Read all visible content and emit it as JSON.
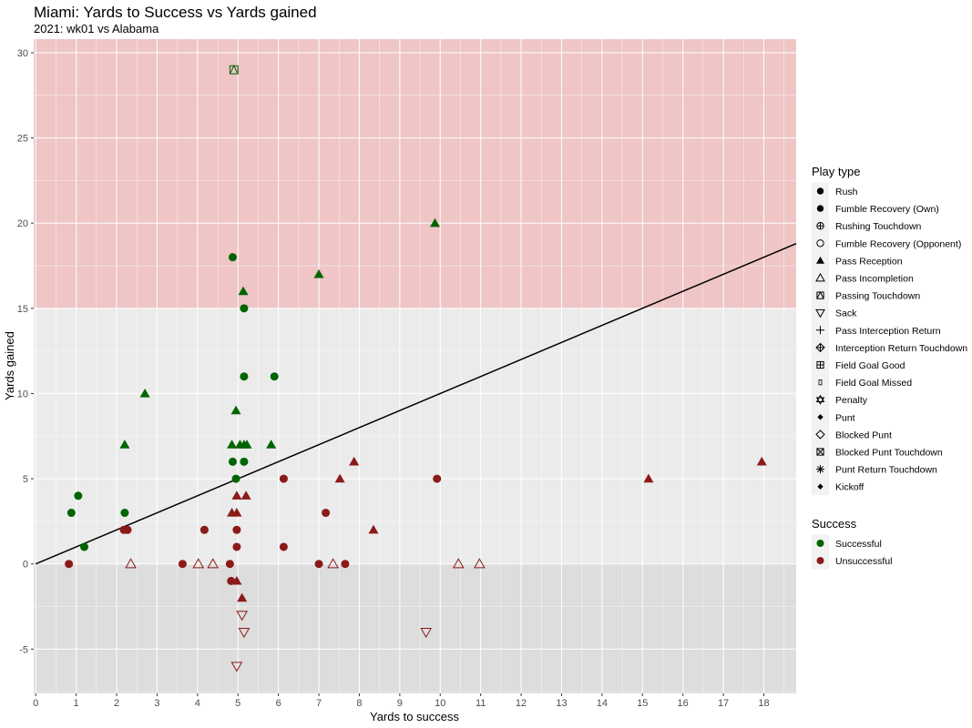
{
  "chart_data": {
    "type": "scatter",
    "title": "Miami: Yards to Success vs Yards gained",
    "subtitle": "2021: wk01 vs Alabama",
    "xlabel": "Yards to success",
    "ylabel": "Yards gained",
    "xlim": [
      -0.05,
      18.8
    ],
    "ylim": [
      -7.6,
      30.8
    ],
    "x_ticks": [
      0,
      1,
      2,
      3,
      4,
      5,
      6,
      7,
      8,
      9,
      10,
      11,
      12,
      13,
      14,
      15,
      16,
      17,
      18
    ],
    "y_ticks": [
      -5,
      0,
      5,
      10,
      15,
      20,
      25,
      30
    ],
    "bands": [
      {
        "from": 15,
        "to": 30.8,
        "color": "#efc5c6"
      },
      {
        "from": 0,
        "to": 15,
        "color": "#ebebeb"
      },
      {
        "from": -7.6,
        "to": 0,
        "color": "#dddddd"
      }
    ],
    "reference_line": {
      "slope": 1,
      "intercept": 0,
      "color": "#000000"
    },
    "colors": {
      "Successful": "#006400",
      "Unsuccessful": "#8b1a1a"
    },
    "legend_play_type": {
      "title": "Play type",
      "entries": [
        {
          "label": "Rush",
          "shape": "circle-filled"
        },
        {
          "label": "Fumble Recovery (Own)",
          "shape": "circle-filled"
        },
        {
          "label": "Rushing Touchdown",
          "shape": "circle-plus"
        },
        {
          "label": "Fumble Recovery (Opponent)",
          "shape": "circle-open"
        },
        {
          "label": "Pass Reception",
          "shape": "triangle-filled"
        },
        {
          "label": "Pass Incompletion",
          "shape": "triangle-open"
        },
        {
          "label": "Passing Touchdown",
          "shape": "square-triangle"
        },
        {
          "label": "Sack",
          "shape": "triangle-down-open"
        },
        {
          "label": "Pass Interception Return",
          "shape": "plus"
        },
        {
          "label": "Interception Return Touchdown",
          "shape": "diamond-plus"
        },
        {
          "label": "Field Goal Good",
          "shape": "square-plus"
        },
        {
          "label": "Field Goal Missed",
          "shape": "small-rect"
        },
        {
          "label": "Penalty",
          "shape": "star-of-david"
        },
        {
          "label": "Punt",
          "shape": "diamond-filled-small"
        },
        {
          "label": "Blocked Punt",
          "shape": "diamond-open"
        },
        {
          "label": "Blocked Punt Touchdown",
          "shape": "square-x"
        },
        {
          "label": "Punt Return Touchdown",
          "shape": "asterisk"
        },
        {
          "label": "Kickoff",
          "shape": "diamond-filled-small"
        }
      ]
    },
    "legend_success": {
      "title": "Success",
      "entries": [
        {
          "label": "Successful",
          "color": "#006400"
        },
        {
          "label": "Unsuccessful",
          "color": "#8b1a1a"
        }
      ]
    },
    "points": [
      {
        "x": 0.88,
        "y": 3,
        "play": "Rush",
        "success": "Successful"
      },
      {
        "x": 1.05,
        "y": 4,
        "play": "Rush",
        "success": "Successful"
      },
      {
        "x": 1.2,
        "y": 1,
        "play": "Rush",
        "success": "Successful"
      },
      {
        "x": 2.2,
        "y": 3,
        "play": "Rush",
        "success": "Successful"
      },
      {
        "x": 4.87,
        "y": 18,
        "play": "Rush",
        "success": "Successful"
      },
      {
        "x": 4.87,
        "y": 6,
        "play": "Rush",
        "success": "Successful"
      },
      {
        "x": 4.95,
        "y": 5,
        "play": "Rush",
        "success": "Successful"
      },
      {
        "x": 5.15,
        "y": 15,
        "play": "Rush",
        "success": "Successful"
      },
      {
        "x": 5.15,
        "y": 11,
        "play": "Rush",
        "success": "Successful"
      },
      {
        "x": 5.15,
        "y": 6,
        "play": "Rush",
        "success": "Successful"
      },
      {
        "x": 5.9,
        "y": 11,
        "play": "Rush",
        "success": "Successful"
      },
      {
        "x": 2.2,
        "y": 7,
        "play": "Pass Reception",
        "success": "Successful"
      },
      {
        "x": 2.7,
        "y": 10,
        "play": "Pass Reception",
        "success": "Successful"
      },
      {
        "x": 4.85,
        "y": 7,
        "play": "Pass Reception",
        "success": "Successful"
      },
      {
        "x": 4.95,
        "y": 9,
        "play": "Pass Reception",
        "success": "Successful"
      },
      {
        "x": 5.05,
        "y": 7,
        "play": "Pass Reception",
        "success": "Successful"
      },
      {
        "x": 5.13,
        "y": 16,
        "play": "Pass Reception",
        "success": "Successful"
      },
      {
        "x": 5.15,
        "y": 7,
        "play": "Pass Reception",
        "success": "Successful"
      },
      {
        "x": 5.22,
        "y": 7,
        "play": "Pass Reception",
        "success": "Successful"
      },
      {
        "x": 5.82,
        "y": 7,
        "play": "Pass Reception",
        "success": "Successful"
      },
      {
        "x": 7.0,
        "y": 17,
        "play": "Pass Reception",
        "success": "Successful"
      },
      {
        "x": 9.87,
        "y": 20,
        "play": "Pass Reception",
        "success": "Successful"
      },
      {
        "x": 4.9,
        "y": 29,
        "play": "Passing Touchdown",
        "success": "Successful"
      },
      {
        "x": 0.82,
        "y": 0,
        "play": "Rush",
        "success": "Unsuccessful"
      },
      {
        "x": 2.18,
        "y": 2,
        "play": "Rush",
        "success": "Unsuccessful"
      },
      {
        "x": 2.27,
        "y": 2,
        "play": "Rush",
        "success": "Unsuccessful"
      },
      {
        "x": 3.63,
        "y": 0,
        "play": "Rush",
        "success": "Unsuccessful"
      },
      {
        "x": 4.17,
        "y": 2,
        "play": "Rush",
        "success": "Unsuccessful"
      },
      {
        "x": 4.8,
        "y": 0,
        "play": "Rush",
        "success": "Unsuccessful"
      },
      {
        "x": 4.83,
        "y": -1,
        "play": "Rush",
        "success": "Unsuccessful"
      },
      {
        "x": 4.97,
        "y": 2,
        "play": "Rush",
        "success": "Unsuccessful"
      },
      {
        "x": 4.97,
        "y": 1,
        "play": "Rush",
        "success": "Unsuccessful"
      },
      {
        "x": 6.13,
        "y": 5,
        "play": "Rush",
        "success": "Unsuccessful"
      },
      {
        "x": 6.13,
        "y": 1,
        "play": "Rush",
        "success": "Unsuccessful"
      },
      {
        "x": 7.0,
        "y": 0,
        "play": "Rush",
        "success": "Unsuccessful"
      },
      {
        "x": 7.17,
        "y": 3,
        "play": "Rush",
        "success": "Unsuccessful"
      },
      {
        "x": 7.65,
        "y": 0,
        "play": "Rush",
        "success": "Unsuccessful"
      },
      {
        "x": 9.92,
        "y": 5,
        "play": "Rush",
        "success": "Unsuccessful"
      },
      {
        "x": 4.85,
        "y": 3,
        "play": "Pass Reception",
        "success": "Unsuccessful"
      },
      {
        "x": 4.97,
        "y": 4,
        "play": "Pass Reception",
        "success": "Unsuccessful"
      },
      {
        "x": 4.97,
        "y": 3,
        "play": "Pass Reception",
        "success": "Unsuccessful"
      },
      {
        "x": 4.97,
        "y": -1,
        "play": "Pass Reception",
        "success": "Unsuccessful"
      },
      {
        "x": 5.1,
        "y": -2,
        "play": "Pass Reception",
        "success": "Unsuccessful"
      },
      {
        "x": 5.2,
        "y": 4,
        "play": "Pass Reception",
        "success": "Unsuccessful"
      },
      {
        "x": 7.52,
        "y": 5,
        "play": "Pass Reception",
        "success": "Unsuccessful"
      },
      {
        "x": 7.87,
        "y": 6,
        "play": "Pass Reception",
        "success": "Unsuccessful"
      },
      {
        "x": 8.35,
        "y": 2,
        "play": "Pass Reception",
        "success": "Unsuccessful"
      },
      {
        "x": 15.15,
        "y": 5,
        "play": "Pass Reception",
        "success": "Unsuccessful"
      },
      {
        "x": 17.95,
        "y": 6,
        "play": "Pass Reception",
        "success": "Unsuccessful"
      },
      {
        "x": 2.35,
        "y": 0,
        "play": "Pass Incompletion",
        "success": "Unsuccessful"
      },
      {
        "x": 4.02,
        "y": 0,
        "play": "Pass Incompletion",
        "success": "Unsuccessful"
      },
      {
        "x": 4.38,
        "y": 0,
        "play": "Pass Incompletion",
        "success": "Unsuccessful"
      },
      {
        "x": 7.35,
        "y": 0,
        "play": "Pass Incompletion",
        "success": "Unsuccessful"
      },
      {
        "x": 10.45,
        "y": 0,
        "play": "Pass Incompletion",
        "success": "Unsuccessful"
      },
      {
        "x": 10.97,
        "y": 0,
        "play": "Pass Incompletion",
        "success": "Unsuccessful"
      },
      {
        "x": 5.1,
        "y": -3,
        "play": "Sack",
        "success": "Unsuccessful"
      },
      {
        "x": 5.15,
        "y": -4,
        "play": "Sack",
        "success": "Unsuccessful"
      },
      {
        "x": 9.65,
        "y": -4,
        "play": "Sack",
        "success": "Unsuccessful"
      },
      {
        "x": 4.97,
        "y": -6,
        "play": "Sack",
        "success": "Unsuccessful"
      }
    ]
  }
}
